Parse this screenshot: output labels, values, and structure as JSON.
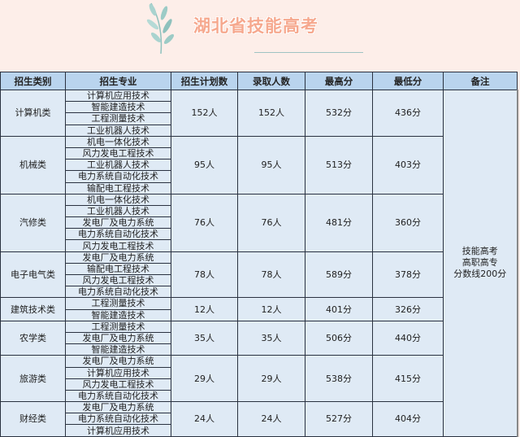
{
  "title": "湖北省技能高考",
  "colors": {
    "background": "#fdeee9",
    "header": "#b9d4ee",
    "cell": "#dfeaf5",
    "title": "#f6a88e"
  },
  "table": {
    "headers": [
      "招生类别",
      "招生专业",
      "招生计划数",
      "录取人数",
      "最高分",
      "最低分",
      "备注"
    ],
    "note": "技能高考\n高职高专\n分数线200分",
    "note_lines": [
      "技能高考",
      "高职高专",
      "分数线200分"
    ],
    "groups": [
      {
        "category": "计算机类",
        "majors": [
          "计算机应用技术",
          "智能建造技术",
          "工程测量技术",
          "工业机器人技术"
        ],
        "plan": "152人",
        "admitted": "152人",
        "max": "532分",
        "min": "436分"
      },
      {
        "category": "机械类",
        "majors": [
          "机电一体化技术",
          "风力发电工程技术",
          "工业机器人技术",
          "电力系统自动化技术",
          "输配电工程技术"
        ],
        "plan": "95人",
        "admitted": "95人",
        "max": "513分",
        "min": "403分"
      },
      {
        "category": "汽修类",
        "majors": [
          "机电一体化技术",
          "工业机器人技术",
          "发电厂及电力系统",
          "电力系统自动化技术",
          "风力发电工程技术"
        ],
        "plan": "76人",
        "admitted": "76人",
        "max": "481分",
        "min": "360分"
      },
      {
        "category": "电子电气类",
        "majors": [
          "发电厂及电力系统",
          "输配电工程技术",
          "风力发电工程技术",
          "电力系统自动化技术"
        ],
        "plan": "78人",
        "admitted": "78人",
        "max": "589分",
        "min": "378分"
      },
      {
        "category": "建筑技术类",
        "majors": [
          "工程测量技术",
          "智能建造技术"
        ],
        "plan": "12人",
        "admitted": "12人",
        "max": "401分",
        "min": "326分"
      },
      {
        "category": "农学类",
        "majors": [
          "工程测量技术",
          "发电厂及电力系统",
          "智能建造技术"
        ],
        "plan": "35人",
        "admitted": "35人",
        "max": "506分",
        "min": "440分"
      },
      {
        "category": "旅游类",
        "majors": [
          "发电厂及电力系统",
          "计算机应用技术",
          "风力发电工程技术",
          "电力系统自动化技术"
        ],
        "plan": "29人",
        "admitted": "29人",
        "max": "538分",
        "min": "415分"
      },
      {
        "category": "财经类",
        "majors": [
          "发电厂及电力系统",
          "电力系统自动化技术",
          "计算机应用技术"
        ],
        "plan": "24人",
        "admitted": "24人",
        "max": "527分",
        "min": "404分"
      }
    ]
  }
}
